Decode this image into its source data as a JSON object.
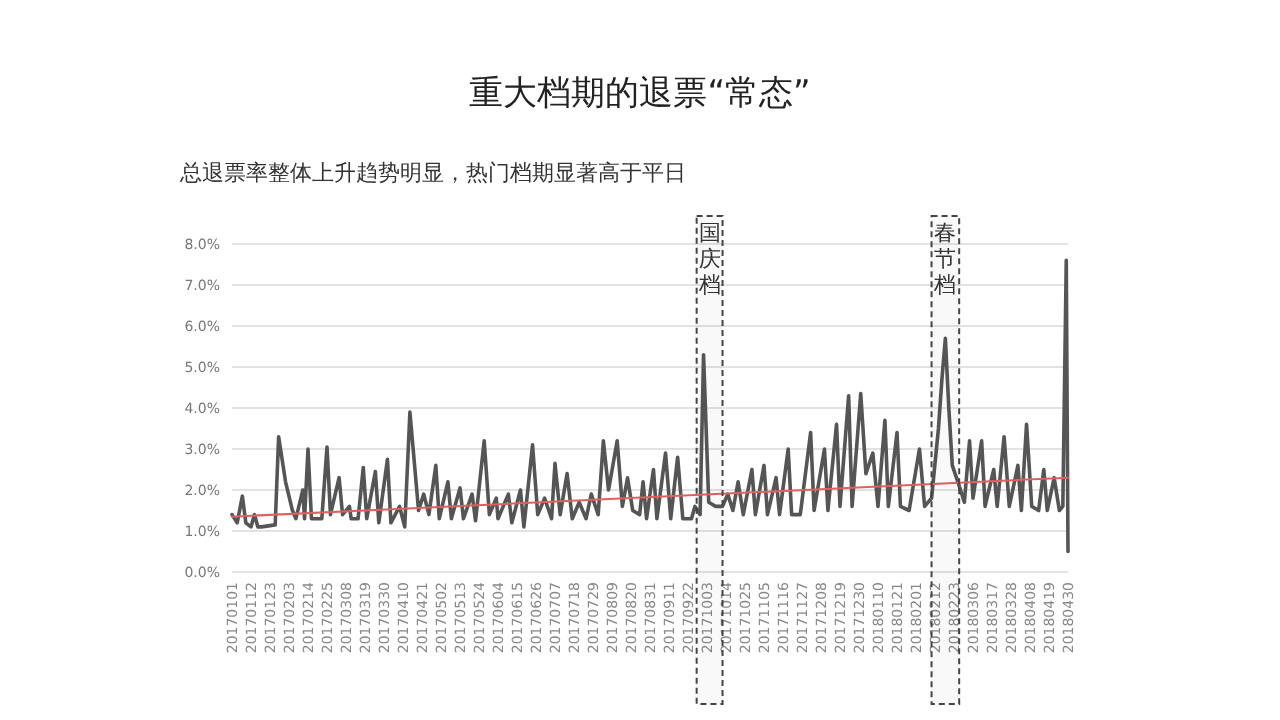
{
  "chart_data": {
    "type": "line",
    "title": "重大档期的退票“常态”",
    "subtitle": "总退票率整体上升趋势明显，热门档期显著高于平日",
    "xlim": [
      "2017-01-01",
      "2018-04-30"
    ],
    "xticks": [
      {
        "value": "2017-01-01",
        "label": "20170101"
      },
      {
        "value": "2017-01-12",
        "label": "20170112"
      },
      {
        "value": "2017-01-23",
        "label": "20170123"
      },
      {
        "value": "2017-02-03",
        "label": "20170203"
      },
      {
        "value": "2017-02-14",
        "label": "20170214"
      },
      {
        "value": "2017-02-25",
        "label": "20170225"
      },
      {
        "value": "2017-03-08",
        "label": "20170308"
      },
      {
        "value": "2017-03-19",
        "label": "20170319"
      },
      {
        "value": "2017-03-30",
        "label": "20170330"
      },
      {
        "value": "2017-04-10",
        "label": "20170410"
      },
      {
        "value": "2017-04-21",
        "label": "20170421"
      },
      {
        "value": "2017-05-02",
        "label": "20170502"
      },
      {
        "value": "2017-05-13",
        "label": "20170513"
      },
      {
        "value": "2017-05-24",
        "label": "20170524"
      },
      {
        "value": "2017-06-04",
        "label": "20170604"
      },
      {
        "value": "2017-06-15",
        "label": "20170615"
      },
      {
        "value": "2017-06-26",
        "label": "20170626"
      },
      {
        "value": "2017-07-07",
        "label": "20170707"
      },
      {
        "value": "2017-07-18",
        "label": "20170718"
      },
      {
        "value": "2017-07-29",
        "label": "20170729"
      },
      {
        "value": "2017-08-09",
        "label": "20170809"
      },
      {
        "value": "2017-08-20",
        "label": "20170820"
      },
      {
        "value": "2017-08-31",
        "label": "20170831"
      },
      {
        "value": "2017-09-11",
        "label": "20170911"
      },
      {
        "value": "2017-09-22",
        "label": "20170922"
      },
      {
        "value": "2017-10-03",
        "label": "20171003"
      },
      {
        "value": "2017-10-14",
        "label": "20171014"
      },
      {
        "value": "2017-10-25",
        "label": "20171025"
      },
      {
        "value": "2017-11-05",
        "label": "20171105"
      },
      {
        "value": "2017-11-16",
        "label": "20171116"
      },
      {
        "value": "2017-11-27",
        "label": "20171127"
      },
      {
        "value": "2017-12-08",
        "label": "20171208"
      },
      {
        "value": "2017-12-19",
        "label": "20171219"
      },
      {
        "value": "2017-12-30",
        "label": "20171230"
      },
      {
        "value": "2018-01-10",
        "label": "20180110"
      },
      {
        "value": "2018-01-21",
        "label": "20180121"
      },
      {
        "value": "2018-02-01",
        "label": "20180201"
      },
      {
        "value": "2018-02-12",
        "label": "20180212"
      },
      {
        "value": "2018-02-23",
        "label": "20180223"
      },
      {
        "value": "2018-03-06",
        "label": "20180306"
      },
      {
        "value": "2018-03-17",
        "label": "20180317"
      },
      {
        "value": "2018-03-28",
        "label": "20180328"
      },
      {
        "value": "2018-04-08",
        "label": "20180408"
      },
      {
        "value": "2018-04-19",
        "label": "20180419"
      },
      {
        "value": "2018-04-30",
        "label": "20180430"
      }
    ],
    "ylim": [
      0,
      8
    ],
    "yticks": [
      {
        "value": 0,
        "label": "0.0%"
      },
      {
        "value": 1,
        "label": "1.0%"
      },
      {
        "value": 2,
        "label": "2.0%"
      },
      {
        "value": 3,
        "label": "3.0%"
      },
      {
        "value": 4,
        "label": "4.0%"
      },
      {
        "value": 5,
        "label": "5.0%"
      },
      {
        "value": 6,
        "label": "6.0%"
      },
      {
        "value": 7,
        "label": "7.0%"
      },
      {
        "value": 8,
        "label": "8.0%"
      }
    ],
    "grid": "y",
    "marker": "none",
    "line_style": "solid",
    "series": [
      {
        "color": "#555555",
        "x": [
          "2017-01-01",
          "2017-01-04",
          "2017-01-07",
          "2017-01-09",
          "2017-01-12",
          "2017-01-14",
          "2017-01-16",
          "2017-01-18",
          "2017-01-26",
          "2017-01-28",
          "2017-02-01",
          "2017-02-05",
          "2017-02-07",
          "2017-02-11",
          "2017-02-12",
          "2017-02-14",
          "2017-02-16",
          "2017-02-22",
          "2017-02-25",
          "2017-02-27",
          "2017-03-04",
          "2017-03-06",
          "2017-03-10",
          "2017-03-11",
          "2017-03-15",
          "2017-03-18",
          "2017-03-20",
          "2017-03-25",
          "2017-03-27",
          "2017-04-01",
          "2017-04-03",
          "2017-04-08",
          "2017-04-11",
          "2017-04-14",
          "2017-04-19",
          "2017-04-22",
          "2017-04-25",
          "2017-04-29",
          "2017-05-01",
          "2017-05-06",
          "2017-05-08",
          "2017-05-13",
          "2017-05-15",
          "2017-05-20",
          "2017-05-22",
          "2017-05-27",
          "2017-05-30",
          "2017-06-03",
          "2017-06-04",
          "2017-06-10",
          "2017-06-12",
          "2017-06-17",
          "2017-06-19",
          "2017-06-24",
          "2017-06-27",
          "2017-07-01",
          "2017-07-05",
          "2017-07-07",
          "2017-07-10",
          "2017-07-14",
          "2017-07-17",
          "2017-07-21",
          "2017-07-25",
          "2017-07-28",
          "2017-08-01",
          "2017-08-04",
          "2017-08-07",
          "2017-08-12",
          "2017-08-15",
          "2017-08-18",
          "2017-08-21",
          "2017-08-25",
          "2017-08-27",
          "2017-08-29",
          "2017-09-02",
          "2017-09-04",
          "2017-09-09",
          "2017-09-12",
          "2017-09-16",
          "2017-09-19",
          "2017-09-24",
          "2017-09-26",
          "2017-09-29",
          "2017-10-01",
          "2017-10-04",
          "2017-10-08",
          "2017-10-12",
          "2017-10-15",
          "2017-10-18",
          "2017-10-21",
          "2017-10-24",
          "2017-10-29",
          "2017-10-31",
          "2017-11-05",
          "2017-11-07",
          "2017-11-12",
          "2017-11-14",
          "2017-11-19",
          "2017-11-21",
          "2017-11-26",
          "2017-12-02",
          "2017-12-04",
          "2017-12-10",
          "2017-12-12",
          "2017-12-17",
          "2017-12-19",
          "2017-12-24",
          "2017-12-26",
          "2017-12-31",
          "2018-01-03",
          "2018-01-07",
          "2018-01-10",
          "2018-01-14",
          "2018-01-16",
          "2018-01-21",
          "2018-01-23",
          "2018-01-28",
          "2018-02-03",
          "2018-02-06",
          "2018-02-10",
          "2018-02-14",
          "2018-02-16",
          "2018-02-18",
          "2018-02-20",
          "2018-02-22",
          "2018-02-26",
          "2018-03-01",
          "2018-03-04",
          "2018-03-06",
          "2018-03-11",
          "2018-03-13",
          "2018-03-18",
          "2018-03-20",
          "2018-03-24",
          "2018-03-27",
          "2018-04-01",
          "2018-04-03",
          "2018-04-06",
          "2018-04-09",
          "2018-04-13",
          "2018-04-16",
          "2018-04-18",
          "2018-04-22",
          "2018-04-25",
          "2018-04-27",
          "2018-04-29",
          "2018-04-30"
        ],
        "values": [
          1.4,
          1.2,
          1.85,
          1.2,
          1.1,
          1.4,
          1.1,
          1.1,
          1.15,
          3.3,
          2.2,
          1.5,
          1.3,
          2.0,
          1.3,
          3.0,
          1.3,
          1.3,
          3.05,
          1.4,
          2.3,
          1.4,
          1.6,
          1.3,
          1.3,
          2.55,
          1.3,
          2.45,
          1.2,
          2.75,
          1.2,
          1.6,
          1.1,
          3.9,
          1.5,
          1.9,
          1.4,
          2.6,
          1.3,
          2.2,
          1.3,
          2.05,
          1.3,
          1.9,
          1.25,
          3.2,
          1.4,
          1.8,
          1.3,
          1.9,
          1.2,
          2.0,
          1.1,
          3.1,
          1.4,
          1.8,
          1.3,
          2.65,
          1.4,
          2.4,
          1.3,
          1.7,
          1.3,
          1.9,
          1.4,
          3.2,
          2.0,
          3.2,
          1.6,
          2.3,
          1.5,
          1.4,
          2.2,
          1.3,
          2.5,
          1.3,
          2.9,
          1.3,
          2.8,
          1.3,
          1.3,
          1.6,
          1.4,
          5.3,
          1.7,
          1.6,
          1.6,
          1.9,
          1.5,
          2.2,
          1.4,
          2.5,
          1.4,
          2.6,
          1.4,
          2.3,
          1.4,
          3.0,
          1.4,
          1.4,
          3.4,
          1.5,
          3.0,
          1.5,
          3.6,
          1.6,
          4.3,
          1.6,
          4.35,
          2.4,
          2.9,
          1.6,
          3.7,
          1.6,
          3.4,
          1.6,
          1.5,
          3.0,
          1.6,
          1.8,
          3.5,
          4.7,
          5.7,
          4.0,
          2.6,
          2.1,
          1.7,
          3.2,
          1.8,
          3.2,
          1.6,
          2.5,
          1.6,
          3.3,
          1.6,
          2.6,
          1.5,
          3.6,
          1.6,
          1.5,
          2.5,
          1.5,
          2.3,
          1.5,
          1.6,
          7.6,
          0.5
        ]
      },
      {
        "type": "line",
        "color": "#e06060",
        "x": [
          "2017-01-01",
          "2018-04-30"
        ],
        "values": [
          1.35,
          2.3
        ]
      }
    ],
    "bands": [
      {
        "axis": "x",
        "from": "2017-09-27",
        "to": "2017-10-12",
        "label": "国庆档",
        "color": "#444444"
      },
      {
        "axis": "x",
        "from": "2018-02-10",
        "to": "2018-02-26",
        "label": "春节档",
        "color": "#444444"
      }
    ]
  }
}
